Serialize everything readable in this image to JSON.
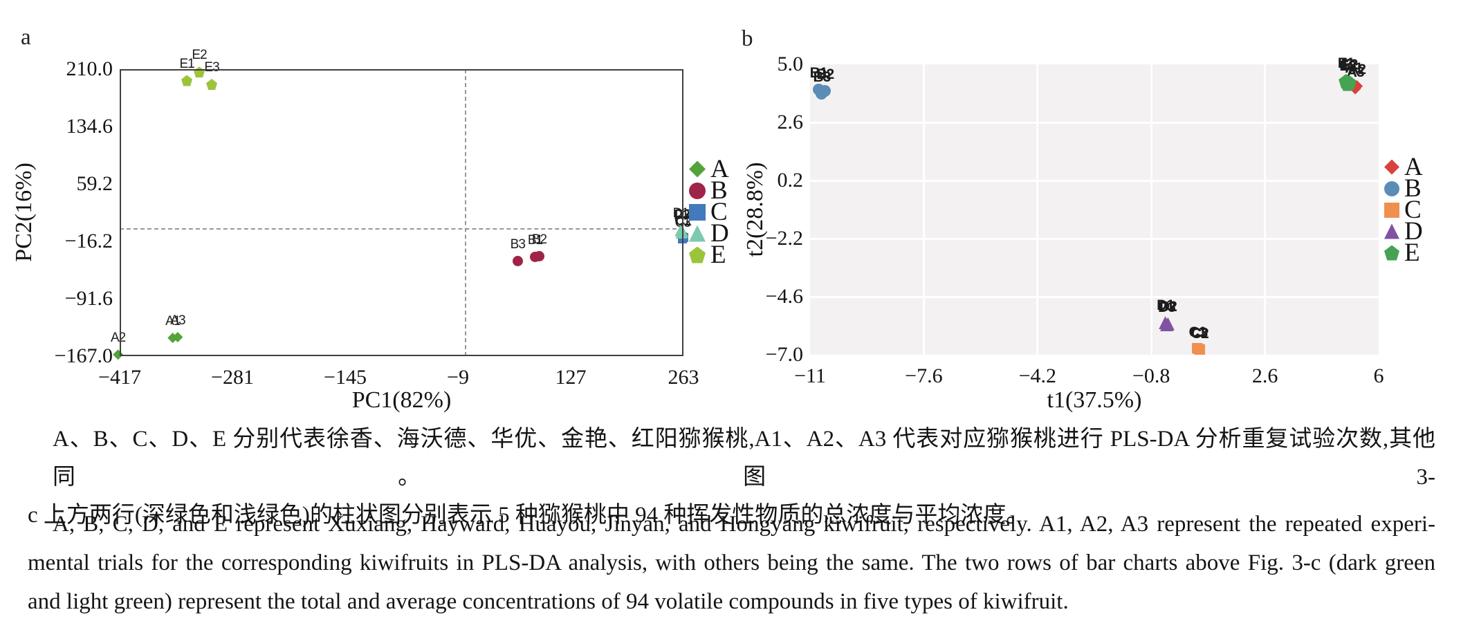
{
  "panels": {
    "a": {
      "letter": "a"
    },
    "b": {
      "letter": "b"
    }
  },
  "chart_data": [
    {
      "id": "pca-score-plot",
      "type": "scatter",
      "title": "",
      "xlabel": "PC1(82%)",
      "ylabel": "PC2(16%)",
      "xlim": [
        -417,
        263
      ],
      "ylim": [
        -167,
        210
      ],
      "grid": false,
      "background": "#ffffff",
      "legend_position": "right",
      "reference_lines": {
        "x": 0,
        "y": 0,
        "style": "dashed"
      },
      "x_ticks": [
        {
          "v": -417,
          "label": "−417"
        },
        {
          "v": -281,
          "label": "−281"
        },
        {
          "v": -145,
          "label": "−145"
        },
        {
          "v": -9,
          "label": "−9"
        },
        {
          "v": 127,
          "label": "127"
        },
        {
          "v": 263,
          "label": "263"
        }
      ],
      "y_ticks": [
        {
          "v": 210.0,
          "label": "210.0"
        },
        {
          "v": 134.6,
          "label": "134.6"
        },
        {
          "v": 59.2,
          "label": "59.2"
        },
        {
          "v": -16.2,
          "label": "−16.2"
        },
        {
          "v": -91.6,
          "label": "−91.6"
        },
        {
          "v": -167.0,
          "label": "−167.0"
        }
      ],
      "series": [
        {
          "name": "A",
          "marker": "diamond",
          "color": "#52a339",
          "points": [
            {
              "label": "A2",
              "x": -419,
              "y": -165
            },
            {
              "label": "A1",
              "x": -353,
              "y": -143
            },
            {
              "label": "A3",
              "x": -347,
              "y": -142
            }
          ]
        },
        {
          "name": "B",
          "marker": "circle",
          "color": "#a02348",
          "points": [
            {
              "label": "B3",
              "x": 63,
              "y": -42
            },
            {
              "label": "B1",
              "x": 84,
              "y": -37
            },
            {
              "label": "B2",
              "x": 89,
              "y": -36
            }
          ]
        },
        {
          "name": "C",
          "marker": "square",
          "color": "#4379bd",
          "points": [
            {
              "label": "C1",
              "x": 261.5,
              "y": -10
            },
            {
              "label": "C2",
              "x": 263,
              "y": -11.5
            },
            {
              "label": "C3",
              "x": 262,
              "y": -13
            }
          ]
        },
        {
          "name": "D",
          "marker": "triangle",
          "color": "#7cc9ad",
          "points": [
            {
              "label": "D1",
              "x": 259.5,
              "y": -2
            },
            {
              "label": "D2",
              "x": 262,
              "y": -3.5
            },
            {
              "label": "D3",
              "x": 260.5,
              "y": -5
            }
          ]
        },
        {
          "name": "E",
          "marker": "pentagon",
          "color": "#9cc43b",
          "points": [
            {
              "label": "E1",
              "x": -336,
              "y": 195
            },
            {
              "label": "E2",
              "x": -321,
              "y": 206
            },
            {
              "label": "E3",
              "x": -306,
              "y": 190
            }
          ]
        }
      ]
    },
    {
      "id": "plsda-score-plot",
      "type": "scatter",
      "title": "",
      "xlabel": "t1(37.5%)",
      "ylabel": "t2(28.8%)",
      "xlim": [
        -11,
        6
      ],
      "ylim": [
        -7,
        5
      ],
      "grid": true,
      "background": "#f3f1f1",
      "legend_position": "right",
      "x_ticks": [
        {
          "v": -11,
          "label": "−11"
        },
        {
          "v": -7.6,
          "label": "−7.6"
        },
        {
          "v": -4.2,
          "label": "−4.2"
        },
        {
          "v": -0.8,
          "label": "−0.8"
        },
        {
          "v": 2.6,
          "label": "2.6"
        },
        {
          "v": 6,
          "label": "6"
        }
      ],
      "y_ticks": [
        {
          "v": 5.0,
          "label": "5.0"
        },
        {
          "v": 2.6,
          "label": "2.6"
        },
        {
          "v": 0.2,
          "label": "0.2"
        },
        {
          "v": -2.2,
          "label": "−2.2"
        },
        {
          "v": -4.6,
          "label": "−4.6"
        },
        {
          "v": -7.0,
          "label": "−7.0"
        }
      ],
      "series": [
        {
          "name": "A",
          "marker": "diamond",
          "color": "#d9413d",
          "points": [
            {
              "label": "A1",
              "x": 5.25,
              "y": 4.15
            },
            {
              "label": "A2",
              "x": 5.35,
              "y": 4.1
            },
            {
              "label": "A3",
              "x": 5.3,
              "y": 4.0
            }
          ]
        },
        {
          "name": "B",
          "marker": "circle",
          "color": "#5b8cb8",
          "points": [
            {
              "label": "B1",
              "x": -10.75,
              "y": 3.95
            },
            {
              "label": "B2",
              "x": -10.55,
              "y": 3.9
            },
            {
              "label": "B3",
              "x": -10.65,
              "y": 3.8
            }
          ]
        },
        {
          "name": "C",
          "marker": "square",
          "color": "#f09050",
          "points": [
            {
              "label": "C1",
              "x": 0.58,
              "y": -6.72
            },
            {
              "label": "C2",
              "x": 0.65,
              "y": -6.78
            },
            {
              "label": "C3",
              "x": 0.62,
              "y": -6.75
            }
          ]
        },
        {
          "name": "D",
          "marker": "triangle",
          "color": "#8152a1",
          "points": [
            {
              "label": "D1",
              "x": -0.38,
              "y": -5.68
            },
            {
              "label": "D2",
              "x": -0.3,
              "y": -5.72
            },
            {
              "label": "D3",
              "x": -0.34,
              "y": -5.76
            }
          ]
        },
        {
          "name": "E",
          "marker": "pentagon",
          "color": "#45a351",
          "points": [
            {
              "label": "E1",
              "x": 5.02,
              "y": 4.3
            },
            {
              "label": "E2",
              "x": 5.12,
              "y": 4.25
            },
            {
              "label": "E3",
              "x": 5.07,
              "y": 4.2
            }
          ]
        }
      ]
    }
  ],
  "caption": {
    "lines": [
      "A、B、C、D、E 分别代表徐香、海沃德、华优、金艳、红阳猕猴桃,A1、A2、A3 代表对应猕猴桃进行 PLS-DA 分析重复试验次数,其他同。图 3-",
      "c 上方两行(深绿色和浅绿色)的柱状图分别表示 5 种猕猴桃中 94 种挥发性物质的总浓度与平均浓度。",
      "A, B, C, D, and E represent Xuxiang, Hayward, Huayou, Jinyan, and Hongyang kiwifruit, respectively. A1, A2, A3 represent the repeated experi-",
      "mental trials for the corresponding kiwifruits in PLS-DA analysis, with others being the same. The two rows of bar charts above Fig. 3-c (dark green",
      "and light green) represent the total and average concentrations of 94 volatile compounds in five types of kiwifruit."
    ]
  }
}
